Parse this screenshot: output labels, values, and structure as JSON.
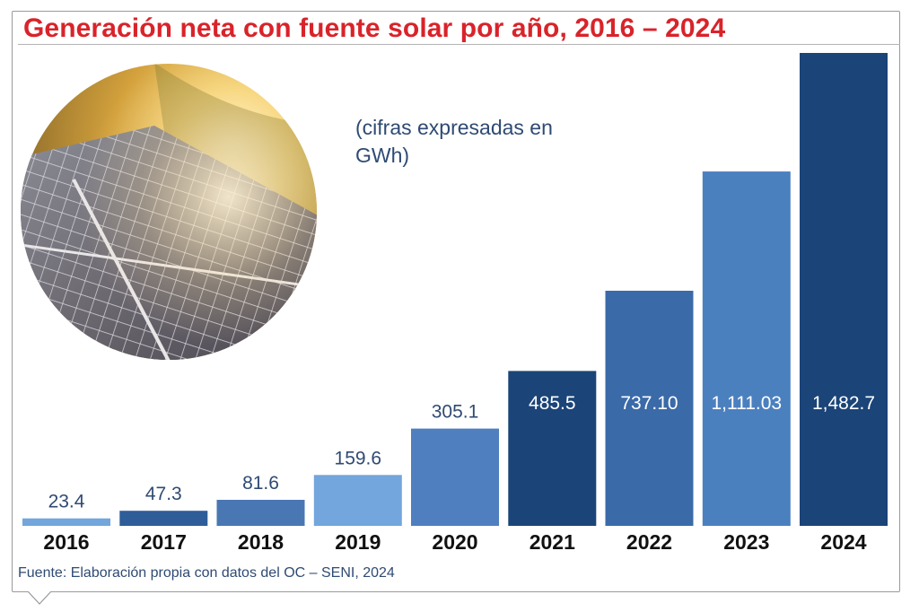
{
  "title": "Generación neta con fuente solar por año, 2016 – 2024",
  "unit_note": "(cifras expresadas en GWh)",
  "source": "Fuente:  Elaboración propia con datos del OC – SENI, 2024",
  "colors": {
    "title": "#d9232a",
    "text_blue": "#2f4a73",
    "bar_light": "#72a6dc",
    "bar_mid": "#4f7fbf",
    "bar_medium_dark": "#3e6aa5",
    "bar_dark": "#1b4478"
  },
  "icons": [
    "solar-panel-photo"
  ],
  "chart_data": {
    "type": "bar",
    "categories": [
      "2016",
      "2017",
      "2018",
      "2019",
      "2020",
      "2021",
      "2022",
      "2023",
      "2024"
    ],
    "values": [
      23.4,
      47.3,
      81.6,
      159.6,
      305.1,
      485.5,
      737.1,
      1111.03,
      1482.7
    ],
    "value_labels": [
      "23.4",
      "47.3",
      "81.6",
      "159.6",
      "305.1",
      "485.5",
      "737.10",
      "1,111.03",
      "1,482.7"
    ],
    "label_inside": [
      false,
      false,
      false,
      false,
      false,
      true,
      true,
      true,
      true
    ],
    "bar_colors": [
      "#72a6dc",
      "#2e5d99",
      "#4977b4",
      "#72a6dc",
      "#4f7fbf",
      "#1b4478",
      "#3a6aa8",
      "#4b80bf",
      "#1b4478"
    ],
    "title": "Generación neta con fuente solar por año, 2016 – 2024",
    "xlabel": "",
    "ylabel": "",
    "unit": "GWh",
    "grid": false,
    "legend": "none"
  }
}
